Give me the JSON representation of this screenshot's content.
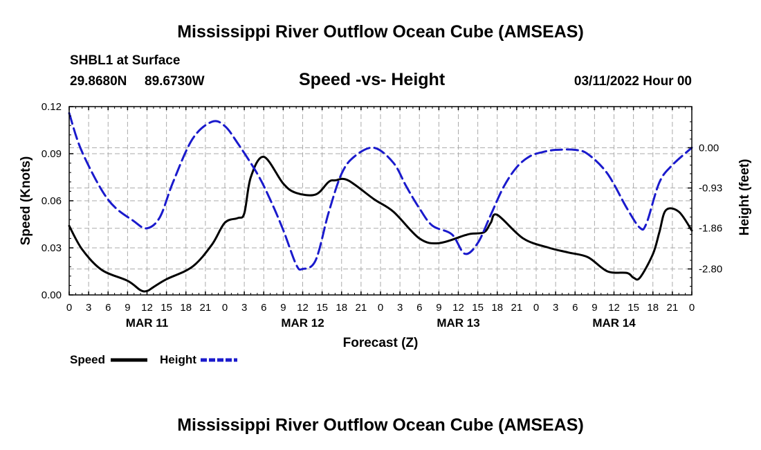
{
  "page": {
    "title_top": "Mississippi River Outflow Ocean Cube (AMSEAS)",
    "title_bottom": "Mississippi River Outflow Ocean Cube (AMSEAS)",
    "station": "SHBL1 at Surface",
    "lat": "29.8680N",
    "lon": "89.6730W",
    "subtitle": "Speed -vs- Height",
    "datetime": "03/11/2022 Hour 00"
  },
  "legend": {
    "speed": "Speed",
    "height": "Height"
  },
  "colors": {
    "speed": "#000000",
    "height": "#1a1acc",
    "grid": "#aaaaaa"
  },
  "chart_data": {
    "type": "line",
    "title": "Speed -vs- Height",
    "xlabel": "Forecast (Z)",
    "ylabel_left": "Speed (Knots)",
    "ylabel_right": "Height (feet)",
    "x_ticks": [
      "0",
      "3",
      "6",
      "9",
      "12",
      "15",
      "18",
      "21",
      "0",
      "3",
      "6",
      "9",
      "12",
      "15",
      "18",
      "21",
      "0",
      "3",
      "6",
      "9",
      "12",
      "15",
      "18",
      "21",
      "0",
      "3",
      "6",
      "9",
      "12",
      "15",
      "18",
      "21",
      "0"
    ],
    "date_labels": [
      {
        "label": "MAR 11",
        "hour": 12
      },
      {
        "label": "MAR 12",
        "hour": 36
      },
      {
        "label": "MAR 13",
        "hour": 60
      },
      {
        "label": "MAR 14",
        "hour": 84
      }
    ],
    "xlim": [
      0,
      96
    ],
    "ylim_left": [
      0,
      0.12
    ],
    "yticks_left": [
      "0.00",
      "0.03",
      "0.06",
      "0.09",
      "0.12"
    ],
    "ylim_right": [
      -3.4,
      0.95
    ],
    "yticks_right": [
      {
        "value": 0.0,
        "label": "0.00"
      },
      {
        "value": -0.93,
        "label": "-0.93"
      },
      {
        "value": -1.86,
        "label": "-1.86"
      },
      {
        "value": -2.8,
        "label": "-2.80"
      }
    ],
    "series": [
      {
        "name": "Speed",
        "axis": "left",
        "style": "solid",
        "x": [
          0,
          2,
          5,
          9,
          11,
          12,
          13,
          15,
          19,
          22,
          24,
          26,
          27,
          28,
          30,
          33,
          35,
          38,
          40,
          41,
          43,
          47,
          50,
          54,
          57,
          61,
          62,
          64,
          65,
          66,
          70,
          74,
          77,
          80,
          83,
          86,
          87,
          88,
          90,
          91,
          92,
          94,
          96
        ],
        "y": [
          0.044,
          0.029,
          0.016,
          0.009,
          0.003,
          0.0025,
          0.005,
          0.01,
          0.018,
          0.032,
          0.046,
          0.049,
          0.052,
          0.075,
          0.088,
          0.071,
          0.065,
          0.064,
          0.072,
          0.073,
          0.073,
          0.061,
          0.053,
          0.036,
          0.033,
          0.038,
          0.039,
          0.04,
          0.046,
          0.051,
          0.036,
          0.03,
          0.027,
          0.024,
          0.015,
          0.014,
          0.011,
          0.011,
          0.026,
          0.04,
          0.054,
          0.053,
          0.041
        ]
      },
      {
        "name": "Height",
        "axis": "right",
        "style": "dashed",
        "x": [
          0,
          2,
          6,
          10,
          12,
          14,
          16,
          19,
          22,
          24,
          26,
          29,
          31,
          33,
          35,
          36,
          38,
          40,
          42,
          44,
          47,
          50,
          52,
          54,
          56,
          59,
          61,
          63,
          65,
          67,
          69,
          71,
          73,
          75,
          78,
          80,
          83,
          86,
          88,
          89,
          91,
          93,
          96
        ],
        "y": [
          0.8,
          -0.1,
          -1.2,
          -1.7,
          -1.86,
          -1.6,
          -0.8,
          0.2,
          0.6,
          0.5,
          0.1,
          -0.6,
          -1.2,
          -1.9,
          -2.7,
          -2.8,
          -2.6,
          -1.5,
          -0.6,
          -0.2,
          0.0,
          -0.35,
          -0.9,
          -1.4,
          -1.8,
          -2.0,
          -2.45,
          -2.2,
          -1.55,
          -0.9,
          -0.45,
          -0.2,
          -0.1,
          -0.05,
          -0.05,
          -0.15,
          -0.6,
          -1.4,
          -1.85,
          -1.75,
          -0.8,
          -0.4,
          0.0
        ]
      }
    ]
  }
}
